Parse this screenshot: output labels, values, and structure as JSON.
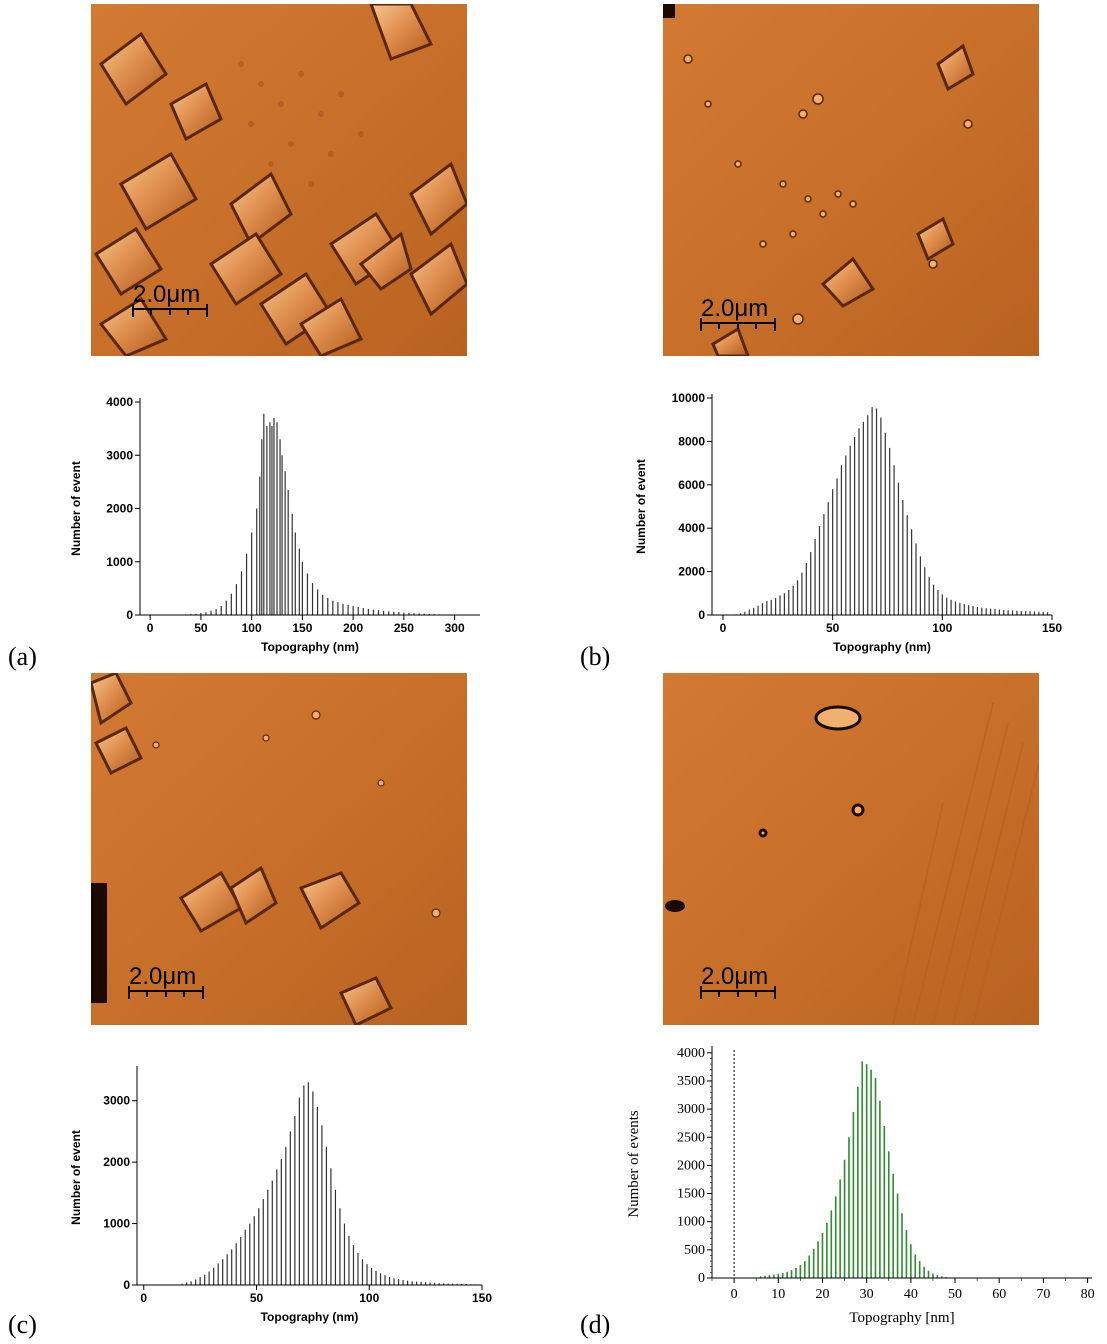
{
  "panels": [
    {
      "letter": "(a)",
      "scale_label": "2.0μm"
    },
    {
      "letter": "(b)",
      "scale_label": "2.0μm"
    },
    {
      "letter": "(c)",
      "scale_label": "2.0μm"
    },
    {
      "letter": "(d)",
      "scale_label": "2.0μm"
    }
  ],
  "colors": {
    "afm_base": "#c8702a",
    "afm_light": "#f0b070",
    "afm_dark": "#5a2808",
    "bars_black": "#333333",
    "bars_green": "#2e8b2e"
  },
  "chart_data": [
    {
      "type": "bar",
      "panel": "(a)",
      "xlabel": "Topography (nm)",
      "ylabel": "Number of event",
      "xlim": [
        -10,
        325
      ],
      "ylim": [
        0,
        4000
      ],
      "xticks": [
        0,
        50,
        100,
        150,
        200,
        250,
        300
      ],
      "yticks": [
        0,
        1000,
        2000,
        3000,
        4000
      ],
      "series": [
        {
          "values": [
            [
              20,
              5
            ],
            [
              25,
              8
            ],
            [
              30,
              10
            ],
            [
              35,
              12
            ],
            [
              40,
              15
            ],
            [
              45,
              20
            ],
            [
              50,
              35
            ],
            [
              55,
              50
            ],
            [
              60,
              80
            ],
            [
              65,
              110
            ],
            [
              70,
              170
            ],
            [
              75,
              270
            ],
            [
              80,
              400
            ],
            [
              85,
              580
            ],
            [
              90,
              820
            ],
            [
              95,
              1150
            ],
            [
              100,
              1550
            ],
            [
              105,
              2000
            ],
            [
              108,
              2600
            ],
            [
              110,
              3300
            ],
            [
              112,
              3780
            ],
            [
              115,
              3550
            ],
            [
              118,
              3620
            ],
            [
              120,
              3550
            ],
            [
              122,
              3700
            ],
            [
              125,
              3620
            ],
            [
              128,
              3300
            ],
            [
              130,
              3000
            ],
            [
              133,
              2700
            ],
            [
              136,
              2350
            ],
            [
              140,
              1900
            ],
            [
              143,
              1550
            ],
            [
              147,
              1250
            ],
            [
              150,
              1000
            ],
            [
              155,
              780
            ],
            [
              160,
              600
            ],
            [
              165,
              480
            ],
            [
              170,
              380
            ],
            [
              175,
              320
            ],
            [
              180,
              270
            ],
            [
              185,
              240
            ],
            [
              190,
              210
            ],
            [
              195,
              190
            ],
            [
              200,
              170
            ],
            [
              205,
              150
            ],
            [
              210,
              130
            ],
            [
              215,
              115
            ],
            [
              220,
              100
            ],
            [
              225,
              90
            ],
            [
              230,
              80
            ],
            [
              235,
              70
            ],
            [
              240,
              60
            ],
            [
              245,
              55
            ],
            [
              250,
              45
            ],
            [
              255,
              40
            ],
            [
              260,
              35
            ],
            [
              265,
              30
            ],
            [
              270,
              25
            ],
            [
              275,
              20
            ],
            [
              280,
              15
            ],
            [
              285,
              12
            ],
            [
              290,
              10
            ],
            [
              295,
              8
            ],
            [
              300,
              6
            ],
            [
              305,
              5
            ],
            [
              310,
              4
            ],
            [
              315,
              3
            ]
          ]
        }
      ]
    },
    {
      "type": "bar",
      "panel": "(b)",
      "xlabel": "Topography (nm)",
      "ylabel": "Number of event",
      "xlim": [
        -5,
        150
      ],
      "ylim": [
        0,
        10000
      ],
      "xticks": [
        0,
        50,
        100,
        150
      ],
      "yticks": [
        0,
        2000,
        4000,
        6000,
        8000,
        10000
      ],
      "series": [
        {
          "values": [
            [
              6,
              30
            ],
            [
              8,
              80
            ],
            [
              10,
              150
            ],
            [
              12,
              250
            ],
            [
              14,
              330
            ],
            [
              16,
              430
            ],
            [
              18,
              540
            ],
            [
              20,
              650
            ],
            [
              22,
              700
            ],
            [
              24,
              780
            ],
            [
              26,
              900
            ],
            [
              28,
              1000
            ],
            [
              30,
              1150
            ],
            [
              32,
              1350
            ],
            [
              34,
              1600
            ],
            [
              36,
              1950
            ],
            [
              38,
              2400
            ],
            [
              40,
              2900
            ],
            [
              42,
              3500
            ],
            [
              44,
              4100
            ],
            [
              46,
              4650
            ],
            [
              48,
              5200
            ],
            [
              50,
              5800
            ],
            [
              52,
              6300
            ],
            [
              54,
              6900
            ],
            [
              56,
              7350
            ],
            [
              58,
              7800
            ],
            [
              60,
              8200
            ],
            [
              62,
              8600
            ],
            [
              64,
              8900
            ],
            [
              66,
              9200
            ],
            [
              68,
              9580
            ],
            [
              70,
              9520
            ],
            [
              72,
              9100
            ],
            [
              74,
              8400
            ],
            [
              76,
              7700
            ],
            [
              78,
              6900
            ],
            [
              80,
              6100
            ],
            [
              82,
              5300
            ],
            [
              84,
              4600
            ],
            [
              86,
              3950
            ],
            [
              88,
              3300
            ],
            [
              90,
              2700
            ],
            [
              92,
              2200
            ],
            [
              94,
              1750
            ],
            [
              96,
              1400
            ],
            [
              98,
              1150
            ],
            [
              100,
              950
            ],
            [
              102,
              800
            ],
            [
              104,
              700
            ],
            [
              106,
              620
            ],
            [
              108,
              560
            ],
            [
              110,
              500
            ],
            [
              112,
              450
            ],
            [
              114,
              410
            ],
            [
              116,
              370
            ],
            [
              118,
              340
            ],
            [
              120,
              310
            ],
            [
              122,
              290
            ],
            [
              124,
              270
            ],
            [
              126,
              250
            ],
            [
              128,
              230
            ],
            [
              130,
              220
            ],
            [
              132,
              210
            ],
            [
              134,
              200
            ],
            [
              136,
              190
            ],
            [
              138,
              180
            ],
            [
              140,
              170
            ],
            [
              142,
              160
            ],
            [
              144,
              150
            ],
            [
              146,
              140
            ],
            [
              148,
              130
            ]
          ]
        }
      ]
    },
    {
      "type": "bar",
      "panel": "(c)",
      "xlabel": "Topography (nm)",
      "ylabel": "Number of event",
      "xlim": [
        -3,
        150
      ],
      "ylim": [
        0,
        3500
      ],
      "xticks": [
        0,
        50,
        100,
        150
      ],
      "yticks": [
        0,
        1000,
        2000,
        3000
      ],
      "series": [
        {
          "values": [
            [
              15,
              10
            ],
            [
              17,
              20
            ],
            [
              19,
              40
            ],
            [
              21,
              60
            ],
            [
              23,
              90
            ],
            [
              25,
              130
            ],
            [
              27,
              170
            ],
            [
              29,
              220
            ],
            [
              31,
              280
            ],
            [
              33,
              350
            ],
            [
              35,
              420
            ],
            [
              37,
              500
            ],
            [
              39,
              580
            ],
            [
              41,
              680
            ],
            [
              43,
              780
            ],
            [
              45,
              900
            ],
            [
              47,
              1000
            ],
            [
              49,
              1120
            ],
            [
              51,
              1250
            ],
            [
              53,
              1400
            ],
            [
              55,
              1550
            ],
            [
              57,
              1700
            ],
            [
              59,
              1880
            ],
            [
              61,
              2050
            ],
            [
              63,
              2250
            ],
            [
              65,
              2500
            ],
            [
              67,
              2750
            ],
            [
              69,
              3050
            ],
            [
              71,
              3250
            ],
            [
              73,
              3300
            ],
            [
              75,
              3150
            ],
            [
              77,
              2900
            ],
            [
              79,
              2600
            ],
            [
              81,
              2250
            ],
            [
              83,
              1900
            ],
            [
              85,
              1550
            ],
            [
              87,
              1250
            ],
            [
              89,
              1000
            ],
            [
              91,
              800
            ],
            [
              93,
              650
            ],
            [
              95,
              520
            ],
            [
              97,
              420
            ],
            [
              99,
              340
            ],
            [
              101,
              280
            ],
            [
              103,
              230
            ],
            [
              105,
              190
            ],
            [
              107,
              160
            ],
            [
              109,
              130
            ],
            [
              111,
              110
            ],
            [
              113,
              95
            ],
            [
              115,
              80
            ],
            [
              117,
              70
            ],
            [
              119,
              60
            ],
            [
              121,
              55
            ],
            [
              123,
              50
            ],
            [
              125,
              45
            ],
            [
              127,
              40
            ],
            [
              129,
              35
            ],
            [
              131,
              30
            ],
            [
              133,
              28
            ],
            [
              135,
              25
            ],
            [
              137,
              22
            ],
            [
              139,
              20
            ],
            [
              141,
              18
            ],
            [
              143,
              15
            ],
            [
              145,
              12
            ],
            [
              147,
              10
            ]
          ]
        }
      ]
    },
    {
      "type": "bar",
      "panel": "(d)",
      "xlabel": "Topography [nm]",
      "ylabel": "Number of events",
      "xlim": [
        -5,
        81
      ],
      "ylim": [
        0,
        4050
      ],
      "xticks": [
        0,
        10,
        20,
        30,
        40,
        50,
        60,
        70,
        80
      ],
      "yticks": [
        0,
        500,
        1000,
        1500,
        2000,
        2500,
        3000,
        3500,
        4000
      ],
      "grid": false,
      "series": [
        {
          "values": [
            [
              6,
              30
            ],
            [
              7,
              40
            ],
            [
              8,
              50
            ],
            [
              9,
              60
            ],
            [
              10,
              75
            ],
            [
              11,
              90
            ],
            [
              12,
              110
            ],
            [
              13,
              140
            ],
            [
              14,
              180
            ],
            [
              15,
              230
            ],
            [
              16,
              300
            ],
            [
              17,
              400
            ],
            [
              18,
              520
            ],
            [
              19,
              650
            ],
            [
              20,
              800
            ],
            [
              21,
              980
            ],
            [
              22,
              1200
            ],
            [
              23,
              1450
            ],
            [
              24,
              1750
            ],
            [
              25,
              2100
            ],
            [
              26,
              2500
            ],
            [
              27,
              2950
            ],
            [
              28,
              3400
            ],
            [
              29,
              3850
            ],
            [
              30,
              3800
            ],
            [
              31,
              3700
            ],
            [
              32,
              3550
            ],
            [
              33,
              3150
            ],
            [
              34,
              2700
            ],
            [
              35,
              2250
            ],
            [
              36,
              1850
            ],
            [
              37,
              1500
            ],
            [
              38,
              1150
            ],
            [
              39,
              850
            ],
            [
              40,
              600
            ],
            [
              41,
              420
            ],
            [
              42,
              300
            ],
            [
              43,
              200
            ],
            [
              44,
              130
            ],
            [
              45,
              80
            ],
            [
              46,
              50
            ],
            [
              47,
              30
            ],
            [
              48,
              15
            ]
          ]
        }
      ]
    }
  ]
}
